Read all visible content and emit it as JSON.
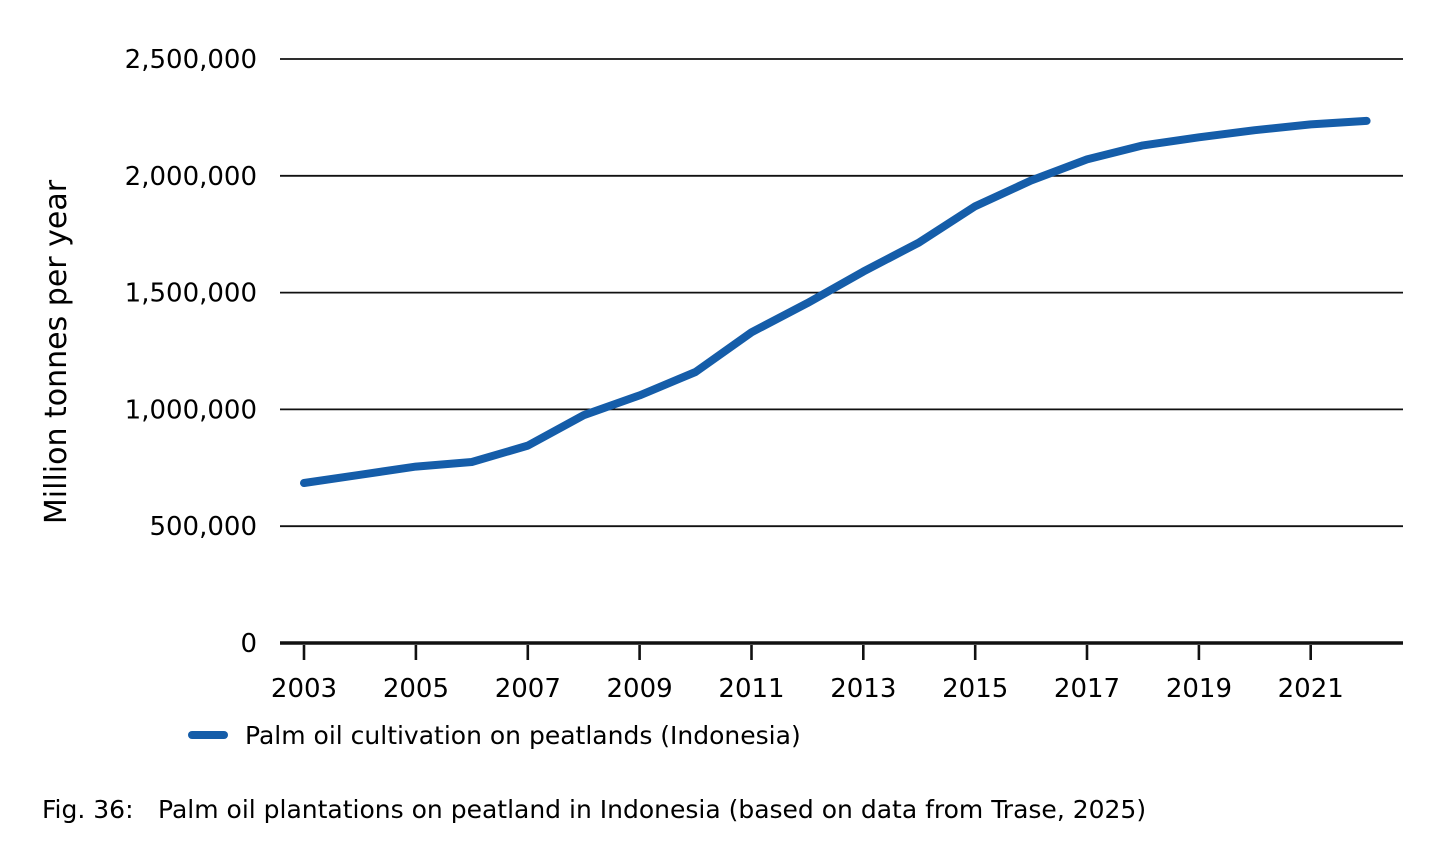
{
  "chart_data": {
    "type": "line",
    "title": "",
    "xlabel": "",
    "ylabel": "Million tonnes per year",
    "x": [
      2003,
      2004,
      2005,
      2006,
      2007,
      2008,
      2009,
      2010,
      2011,
      2012,
      2013,
      2014,
      2015,
      2016,
      2017,
      2018,
      2019,
      2020,
      2021,
      2022
    ],
    "series": [
      {
        "name": "Palm oil cultivation on peatlands (Indonesia)",
        "color": "#155DA9",
        "values": [
          685000,
          720000,
          755000,
          775000,
          845000,
          975000,
          1060000,
          1160000,
          1330000,
          1455000,
          1590000,
          1715000,
          1870000,
          1980000,
          2070000,
          2130000,
          2165000,
          2195000,
          2220000,
          2235000
        ]
      }
    ],
    "x_ticks": [
      2003,
      2005,
      2007,
      2009,
      2011,
      2013,
      2015,
      2017,
      2019,
      2021
    ],
    "y_ticks": [
      0,
      500000,
      1000000,
      1500000,
      2000000,
      2500000
    ],
    "y_tick_labels": [
      "0",
      "500,000",
      "1,000,000",
      "1,500,000",
      "2,000,000",
      "2,500,000"
    ],
    "ylim": [
      0,
      2500000
    ],
    "xlim": [
      2002.57,
      2022.65
    ],
    "grid": "horizontal-only",
    "legend_position": "bottom-left"
  },
  "legend": {
    "label": "Palm oil cultivation on peatlands (Indonesia)"
  },
  "caption": {
    "prefix": "Fig. 36:",
    "text": "Palm oil plantations on peatland in Indonesia (based on data from Trase, 2025)"
  },
  "colors": {
    "line": "#155DA9",
    "axis": "#111111",
    "grid": "#111111",
    "background": "#FFFFFF",
    "text": "#000000"
  }
}
